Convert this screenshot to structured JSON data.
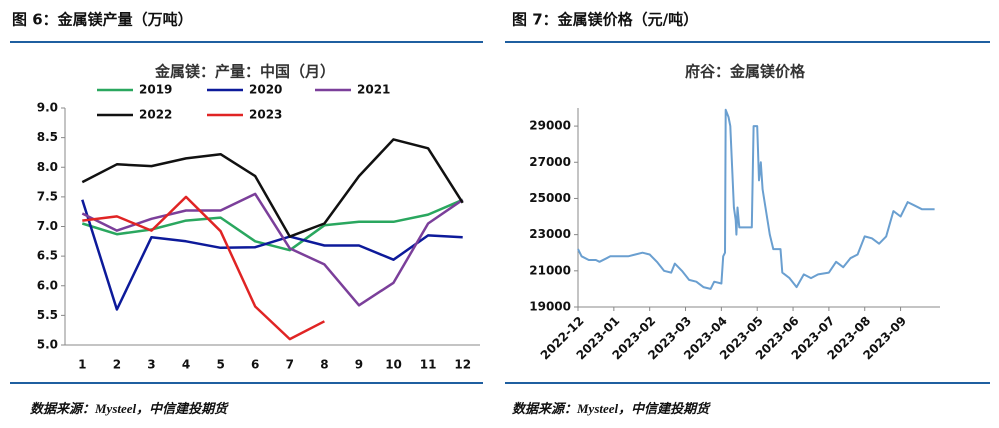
{
  "chart_data": [
    {
      "type": "line",
      "caption": "图 6：金属镁产量（万吨）",
      "title": "金属镁：产量：中国（月）",
      "source": "数据来源：Mysteel，中信建投期货",
      "categories": [
        "1",
        "2",
        "3",
        "4",
        "5",
        "6",
        "7",
        "8",
        "9",
        "10",
        "11",
        "12"
      ],
      "ylim": [
        5,
        9
      ],
      "yticks": [
        {
          "value": 5,
          "label": "5.0"
        },
        5.5,
        {
          "value": 6,
          "label": "6.0"
        },
        6.5,
        {
          "value": 7,
          "label": "7.0"
        },
        7.5,
        {
          "value": 8,
          "label": "8.0"
        },
        8.5,
        {
          "value": 9,
          "label": "9.0"
        }
      ],
      "series": [
        {
          "name": "2019",
          "color": "#2aa75f",
          "values": [
            7.05,
            6.87,
            6.95,
            7.1,
            7.15,
            6.75,
            6.6,
            7.02,
            7.08,
            7.08,
            7.2,
            7.45
          ]
        },
        {
          "name": "2020",
          "color": "#0d1a9a",
          "values": [
            7.45,
            5.6,
            6.82,
            6.75,
            6.64,
            6.65,
            6.83,
            6.68,
            6.68,
            6.44,
            6.85,
            6.82
          ]
        },
        {
          "name": "2021",
          "color": "#7b3f9a",
          "values": [
            7.22,
            6.93,
            7.13,
            7.27,
            7.27,
            7.55,
            6.63,
            6.36,
            5.67,
            6.05,
            7.05,
            7.45
          ]
        },
        {
          "name": "2022",
          "color": "#111111",
          "values": [
            7.75,
            8.05,
            8.02,
            8.15,
            8.22,
            7.85,
            6.83,
            7.05,
            7.85,
            8.47,
            8.32,
            7.4
          ]
        },
        {
          "name": "2023",
          "color": "#e02424",
          "values": [
            7.1,
            7.17,
            6.93,
            7.5,
            6.92,
            5.65,
            5.1,
            5.4,
            null,
            null,
            null,
            null
          ]
        }
      ]
    },
    {
      "type": "line",
      "caption": "图 7：金属镁价格（元/吨）",
      "title": "府谷：金属镁价格",
      "source": "数据来源：Mysteel，中信建投期货",
      "xlim": [
        0,
        10.1
      ],
      "xticks": [
        {
          "value": 0,
          "label": "2022-12"
        },
        {
          "value": 1,
          "label": "2023-01"
        },
        {
          "value": 2,
          "label": "2023-02"
        },
        {
          "value": 3,
          "label": "2023-03"
        },
        {
          "value": 4,
          "label": "2023-04"
        },
        {
          "value": 5,
          "label": "2023-05"
        },
        {
          "value": 6,
          "label": "2023-06"
        },
        {
          "value": 7,
          "label": "2023-07"
        },
        {
          "value": 8,
          "label": "2023-08"
        },
        {
          "value": 9,
          "label": "2023-09"
        }
      ],
      "ylim": [
        19000,
        30000
      ],
      "yticks": [
        19000,
        21000,
        23000,
        25000,
        27000,
        29000
      ],
      "series": [
        {
          "name": "府谷",
          "color": "#6a9fd0",
          "x": [
            0,
            0.1,
            0.3,
            0.5,
            0.6,
            0.8,
            0.9,
            1.0,
            1.4,
            1.6,
            1.8,
            2.0,
            2.2,
            2.4,
            2.6,
            2.7,
            2.9,
            3.1,
            3.3,
            3.5,
            3.7,
            3.8,
            4.0,
            4.05,
            4.1,
            4.12,
            4.2,
            4.25,
            4.35,
            4.4,
            4.42,
            4.45,
            4.5,
            4.85,
            4.9,
            5.0,
            5.05,
            5.1,
            5.15,
            5.35,
            5.45,
            5.65,
            5.7,
            5.9,
            6.1,
            6.3,
            6.5,
            6.7,
            7.0,
            7.2,
            7.4,
            7.6,
            7.8,
            8.0,
            8.2,
            8.4,
            8.6,
            8.8,
            9.0,
            9.2,
            9.4,
            9.6,
            9.95
          ],
          "values": [
            22200,
            21800,
            21600,
            21600,
            21500,
            21700,
            21800,
            21800,
            21800,
            21900,
            22000,
            21900,
            21500,
            21000,
            20900,
            21400,
            21000,
            20500,
            20400,
            20100,
            20000,
            20400,
            20300,
            21800,
            22000,
            29900,
            29500,
            29000,
            24500,
            23800,
            23000,
            24500,
            23400,
            23400,
            29000,
            29000,
            26000,
            27000,
            25500,
            23000,
            22200,
            22200,
            20900,
            20600,
            20100,
            20800,
            20600,
            20800,
            20900,
            21500,
            21200,
            21700,
            21900,
            22900,
            22800,
            22500,
            22900,
            24300,
            24000,
            24800,
            24600,
            24400,
            24400
          ]
        }
      ]
    }
  ]
}
